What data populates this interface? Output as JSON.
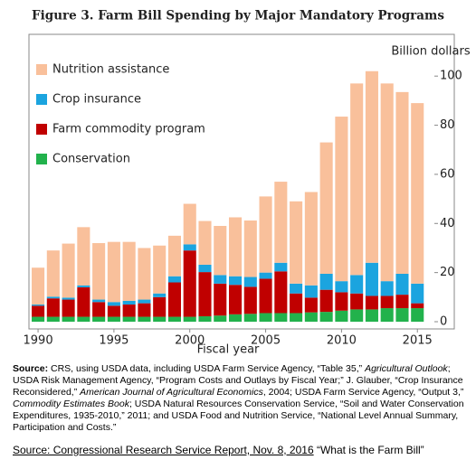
{
  "chart_data": {
    "type": "stacked_bar",
    "title": "Figure 3. Farm Bill Spending by Major Mandatory Programs",
    "y_axis_label": "Billion dollars",
    "x_axis_label": "Fiscal year",
    "x": [
      1990,
      1991,
      1992,
      1993,
      1994,
      1995,
      1996,
      1997,
      1998,
      1999,
      2000,
      2001,
      2002,
      2003,
      2004,
      2005,
      2006,
      2007,
      2008,
      2009,
      2010,
      2011,
      2012,
      2013,
      2014,
      2015
    ],
    "xlim": [
      1989.4,
      2016
    ],
    "xticks": [
      1990,
      1995,
      2000,
      2005,
      2010,
      2015
    ],
    "ylim": [
      0,
      117
    ],
    "yticks": [
      0,
      20,
      40,
      60,
      80,
      100
    ],
    "legend": "top-left",
    "series": [
      {
        "name": "Conservation",
        "color": "#22b24c",
        "values": [
          2,
          2,
          2,
          2,
          2,
          2,
          2,
          2,
          2,
          2,
          2,
          2.2,
          2.5,
          3,
          3.2,
          3.5,
          3.5,
          3.5,
          3.8,
          4,
          4.5,
          5,
          5,
          5.5,
          5.5,
          5.5
        ]
      },
      {
        "name": "Farm commodity program",
        "color": "#c00000",
        "values": [
          4.5,
          7.5,
          7,
          12,
          6,
          4.5,
          5,
          5.5,
          8,
          14,
          27,
          18,
          13,
          12,
          11,
          14,
          17,
          8,
          6,
          9,
          7.5,
          6.5,
          5.5,
          5,
          5.5,
          2
        ]
      },
      {
        "name": "Crop insurance",
        "color": "#1ba4df",
        "values": [
          0.5,
          0.7,
          0.8,
          0.8,
          1,
          1.5,
          1.5,
          1.5,
          1.5,
          2.5,
          2.5,
          3,
          3.5,
          3.5,
          4,
          2.5,
          3.5,
          4,
          5,
          6.5,
          4.5,
          7.5,
          13.5,
          6,
          8.5,
          8
        ]
      },
      {
        "name": "Nutrition assistance",
        "color": "#f9c09b",
        "values": [
          15,
          18.8,
          22,
          23.7,
          23,
          24.5,
          24,
          21,
          19.5,
          16.5,
          16.5,
          17.8,
          20,
          24,
          23,
          31,
          33,
          33.5,
          38,
          53.5,
          67,
          78,
          78,
          80.5,
          74,
          73.5
        ]
      }
    ]
  },
  "source_note": [
    {
      "text": "Source:",
      "style": "bold"
    },
    {
      "text": " CRS, using USDA data, including USDA Farm Service Agency, “Table 35,” ",
      "style": "normal"
    },
    {
      "text": "Agricultural Outlook",
      "style": "italic"
    },
    {
      "text": "; USDA Risk Management Agency, “Program Costs and Outlays by Fiscal Year;” J. Glauber, “Crop Insurance Reconsidered,” ",
      "style": "normal"
    },
    {
      "text": "American Journal of Agricultural Economics",
      "style": "italic"
    },
    {
      "text": ", 2004; USDA Farm Service Agency, “Output 3,” ",
      "style": "normal"
    },
    {
      "text": "Commodity Estimates Book",
      "style": "italic"
    },
    {
      "text": "; USDA Natural Resources Conservation Service, “Soil and Water Conservation Expenditures, 1935-2010,” 2011; and USDA Food and Nutrition Service, “National Level Annual Summary, Participation and Costs.”",
      "style": "normal"
    }
  ],
  "footer": [
    {
      "text": "Source: Congressional Research Service Report, Nov. 8, 2016",
      "style": "underline"
    },
    {
      "text": " “What is the Farm Bill”",
      "style": "normal"
    }
  ]
}
